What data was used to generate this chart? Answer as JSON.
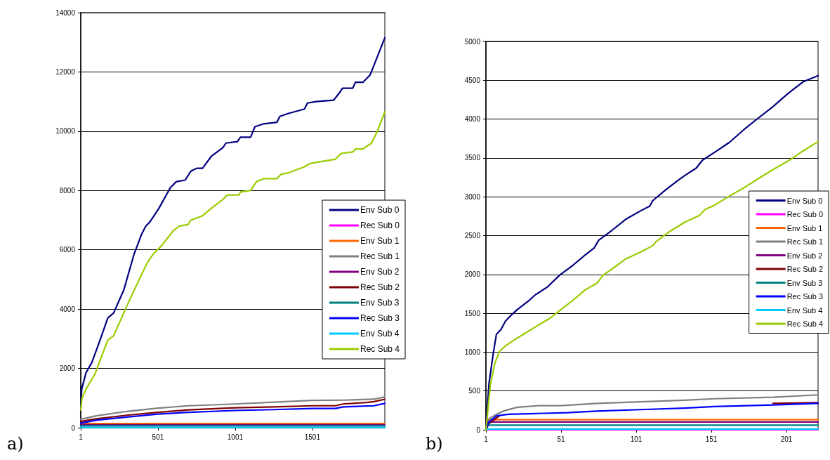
{
  "chart_data": [
    {
      "type": "line",
      "xlim": [
        1,
        1970
      ],
      "xticks": [
        1,
        501,
        1001,
        1501
      ],
      "ylim": [
        0,
        14000
      ],
      "yticks": [
        0,
        2000,
        4000,
        6000,
        8000,
        10000,
        12000,
        14000
      ],
      "grid": "y",
      "legend": "right",
      "marker": "none",
      "line_style": "solid",
      "annotations": [
        "a)"
      ],
      "series": [
        {
          "name": "Env Sub 0",
          "color": "#000080",
          "x": [
            1,
            7,
            35,
            73,
            129,
            176,
            214,
            280,
            346,
            393,
            422,
            450,
            507,
            582,
            620,
            677,
            714,
            752,
            790,
            846,
            922,
            941,
            1016,
            1035,
            1101,
            1129,
            1186,
            1271,
            1290,
            1346,
            1450,
            1469,
            1526,
            1639,
            1677,
            1696,
            1762,
            1780,
            1828,
            1875,
            1913,
            1970
          ],
          "values": [
            600,
            1300,
            1850,
            2200,
            3000,
            3700,
            3870,
            4650,
            5850,
            6500,
            6800,
            6950,
            7400,
            8100,
            8300,
            8350,
            8650,
            8750,
            8750,
            9150,
            9450,
            9600,
            9650,
            9800,
            9800,
            10150,
            10250,
            10300,
            10500,
            10600,
            10750,
            10950,
            11000,
            11050,
            11300,
            11450,
            11450,
            11650,
            11650,
            11900,
            12400,
            13150
          ]
        },
        {
          "name": "Rec Sub 0",
          "color": "#ff00ff"
        },
        {
          "name": "Env Sub 1",
          "color": "#ff6600",
          "x": [
            1,
            1970
          ],
          "values": [
            140,
            140
          ]
        },
        {
          "name": "Rec Sub 1",
          "color": "#808080",
          "x": [
            1,
            100,
            300,
            501,
            700,
            1001,
            1250,
            1501,
            1700,
            1900,
            1970
          ],
          "values": [
            280,
            400,
            550,
            660,
            740,
            800,
            860,
            920,
            930,
            960,
            1040
          ]
        },
        {
          "name": "Env Sub 2",
          "color": "#800080",
          "x": [
            1,
            1970
          ],
          "values": [
            100,
            100
          ]
        },
        {
          "name": "Rec Sub 2",
          "color": "#800000",
          "x": [
            1,
            100,
            300,
            501,
            700,
            1001,
            1250,
            1501,
            1650,
            1700,
            1850,
            1900,
            1970
          ],
          "values": [
            210,
            300,
            420,
            520,
            600,
            670,
            700,
            740,
            740,
            800,
            850,
            880,
            960
          ]
        },
        {
          "name": "Env Sub 3",
          "color": "#008080",
          "x": [
            1,
            1970
          ],
          "values": [
            60,
            60
          ]
        },
        {
          "name": "Rec Sub 3",
          "color": "#0000ff",
          "x": [
            1,
            100,
            300,
            501,
            700,
            1001,
            1250,
            1501,
            1650,
            1700,
            1900,
            1970
          ],
          "values": [
            150,
            250,
            360,
            460,
            520,
            580,
            610,
            650,
            650,
            700,
            740,
            820
          ]
        },
        {
          "name": "Env Sub 4",
          "color": "#00ccff",
          "x": [
            1,
            1970
          ],
          "values": [
            10,
            10
          ]
        },
        {
          "name": "Rec Sub 4",
          "color": "#99cc00",
          "x": [
            1,
            9,
            35,
            92,
            139,
            176,
            214,
            299,
            393,
            431,
            469,
            526,
            601,
            639,
            695,
            714,
            790,
            846,
            922,
            950,
            1026,
            1035,
            1101,
            1139,
            1186,
            1271,
            1299,
            1346,
            1450,
            1479,
            1526,
            1648,
            1686,
            1762,
            1780,
            1828,
            1884,
            1922,
            1970
          ],
          "values": [
            600,
            1000,
            1300,
            1800,
            2450,
            2950,
            3100,
            4100,
            5150,
            5550,
            5850,
            6150,
            6650,
            6800,
            6850,
            7000,
            7150,
            7400,
            7700,
            7850,
            7850,
            7950,
            8000,
            8300,
            8400,
            8400,
            8550,
            8600,
            8800,
            8900,
            8950,
            9050,
            9250,
            9300,
            9400,
            9400,
            9600,
            10000,
            10650
          ]
        }
      ]
    },
    {
      "type": "line",
      "xlim": [
        1,
        222
      ],
      "xticks": [
        1,
        51,
        101,
        151,
        201
      ],
      "ylim": [
        0,
        5000
      ],
      "yticks": [
        0,
        500,
        1000,
        1500,
        2000,
        2500,
        3000,
        3500,
        4000,
        4500,
        5000
      ],
      "grid": "y",
      "legend": "right",
      "marker": "none",
      "line_style": "solid",
      "annotations": [
        "b)"
      ],
      "series": [
        {
          "name": "Env Sub 0",
          "color": "#000080",
          "x": [
            1,
            3,
            6,
            8,
            11,
            14,
            18,
            22,
            30,
            34,
            42,
            50,
            59,
            67,
            73,
            76,
            85,
            94,
            104,
            110,
            112,
            120,
            128,
            133,
            141,
            145,
            153,
            163,
            173,
            182,
            192,
            202,
            212,
            222
          ],
          "values": [
            0,
            590,
            1000,
            1230,
            1290,
            1400,
            1480,
            1550,
            1670,
            1740,
            1840,
            1990,
            2120,
            2250,
            2340,
            2440,
            2570,
            2710,
            2820,
            2880,
            2950,
            3080,
            3200,
            3270,
            3370,
            3470,
            3570,
            3700,
            3870,
            4010,
            4160,
            4330,
            4480,
            4560
          ]
        },
        {
          "name": "Rec Sub 0",
          "color": "#ff00ff",
          "x": [
            1,
            222
          ],
          "values": [
            0,
            0
          ]
        },
        {
          "name": "Env Sub 1",
          "color": "#ff6600",
          "x": [
            1,
            2,
            222
          ],
          "values": [
            0,
            130,
            130
          ]
        },
        {
          "name": "Rec Sub 1",
          "color": "#808080",
          "x": [
            1,
            3,
            8,
            14,
            22,
            36,
            51,
            75,
            104,
            133,
            153,
            192,
            222
          ],
          "values": [
            0,
            140,
            200,
            250,
            290,
            310,
            310,
            340,
            360,
            380,
            400,
            420,
            450
          ]
        },
        {
          "name": "Env Sub 2",
          "color": "#800080",
          "x": [
            1,
            2,
            222
          ],
          "values": [
            0,
            100,
            100
          ]
        },
        {
          "name": "Rec Sub 2",
          "color": "#800000",
          "x": [
            1,
            3,
            10,
            16,
            36,
            55,
            75,
            104,
            133,
            153,
            192,
            222
          ],
          "values": [
            0,
            80,
            180,
            null,
            null,
            null,
            null,
            null,
            null,
            null,
            340,
            350
          ]
        },
        {
          "name": "Env Sub 3",
          "color": "#008080",
          "x": [
            1,
            2,
            222
          ],
          "values": [
            0,
            60,
            60
          ]
        },
        {
          "name": "Rec Sub 3",
          "color": "#0000ff",
          "x": [
            1,
            3,
            8,
            16,
            36,
            55,
            75,
            104,
            133,
            153,
            192,
            222
          ],
          "values": [
            0,
            100,
            180,
            200,
            210,
            220,
            240,
            260,
            280,
            300,
            320,
            340
          ]
        },
        {
          "name": "Env Sub 4",
          "color": "#00ccff",
          "x": [
            1,
            2,
            222
          ],
          "values": [
            0,
            10,
            10
          ]
        },
        {
          "name": "Rec Sub 4",
          "color": "#99cc00",
          "x": [
            1,
            4,
            7,
            10,
            14,
            20,
            26,
            36,
            44,
            51,
            59,
            67,
            75,
            79,
            87,
            94,
            104,
            112,
            114,
            123,
            133,
            143,
            147,
            153,
            163,
            173,
            182,
            192,
            202,
            212,
            222
          ],
          "values": [
            0,
            590,
            860,
            1010,
            1080,
            1160,
            1230,
            1350,
            1440,
            1550,
            1670,
            1800,
            1890,
            1990,
            2100,
            2200,
            2290,
            2370,
            2420,
            2550,
            2670,
            2760,
            2840,
            2890,
            3010,
            3120,
            3230,
            3350,
            3460,
            3590,
            3710
          ]
        }
      ]
    }
  ]
}
